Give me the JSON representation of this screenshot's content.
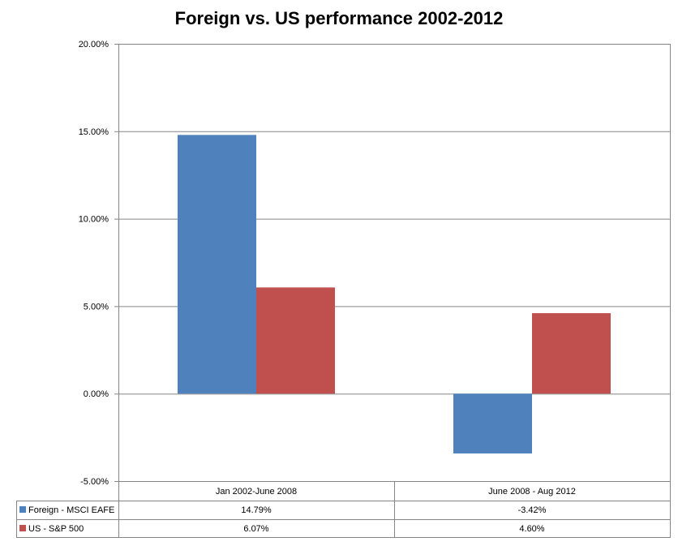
{
  "chart_data": {
    "type": "bar",
    "title": "Foreign vs. US performance 2002-2012",
    "categories": [
      "Jan 2002-June 2008",
      "June 2008 - Aug 2012"
    ],
    "series": [
      {
        "name": "Foreign - MSCI EAFE",
        "values": [
          14.79,
          -3.42
        ],
        "labels": [
          "14.79%",
          "-3.42%"
        ],
        "color": "#4f81bd"
      },
      {
        "name": "US - S&P 500",
        "values": [
          6.07,
          4.6
        ],
        "labels": [
          "6.07%",
          "4.60%"
        ],
        "color": "#c0504d"
      }
    ],
    "ylim": [
      -5,
      20
    ],
    "yticks": [
      20,
      15,
      10,
      5,
      0,
      -5
    ],
    "ytick_labels": [
      "20.00%",
      "15.00%",
      "10.00%",
      "5.00%",
      "0.00%",
      "-5.00%"
    ],
    "grid": true,
    "legend": "data-table"
  }
}
